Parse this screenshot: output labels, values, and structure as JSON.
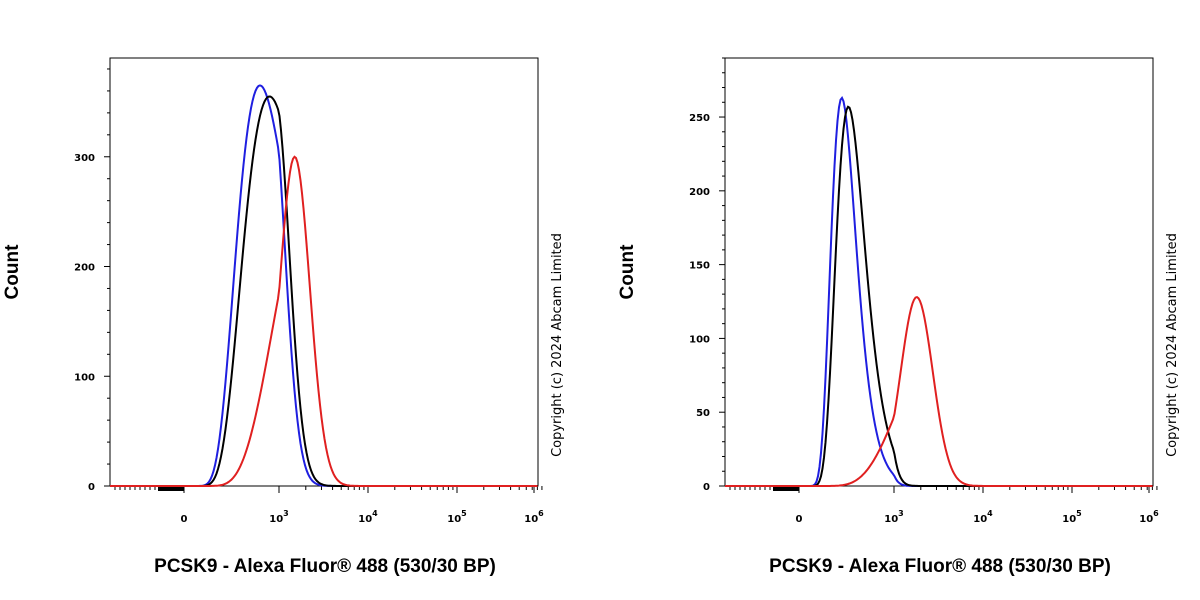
{
  "copyright": "Copyright (c) 2024 Abcam Limited",
  "chart_data": [
    {
      "type": "line",
      "ylabel": "Count",
      "xlabel": "PCSK9 - Alexa Fluor® 488 (530/30 BP)",
      "ylim": [
        0,
        390
      ],
      "yticks": [
        0,
        100,
        200,
        300
      ],
      "ytick_labels": [
        "0",
        "100",
        "200",
        "300"
      ],
      "x_scale": "biexponential",
      "x_major_ticks": [
        "0",
        "10^3",
        "10^4",
        "10^5",
        "10^6"
      ],
      "series": [
        {
          "color": "#1f1fe0",
          "peak_x": 800,
          "peak_y": 365,
          "width": 0.16
        },
        {
          "color": "#000000",
          "peak_x": 900,
          "peak_y": 355,
          "width": 0.16
        },
        {
          "color": "#e02020",
          "peak_x": 1500,
          "peak_y": 300,
          "width": 0.17
        }
      ]
    },
    {
      "type": "line",
      "ylabel": "Count",
      "xlabel": "PCSK9 - Alexa Fluor® 488 (530/30 BP)",
      "ylim": [
        0,
        290
      ],
      "yticks": [
        0,
        50,
        100,
        150,
        200,
        250
      ],
      "ytick_labels": [
        "0",
        "50",
        "100",
        "150",
        "200",
        "250"
      ],
      "x_scale": "biexponential",
      "x_major_ticks": [
        "0",
        "10^3",
        "10^4",
        "10^5",
        "10^6"
      ],
      "series": [
        {
          "color": "#1f1fe0",
          "peak_x": 450,
          "peak_y": 263,
          "width": 0.13
        },
        {
          "color": "#000000",
          "peak_x": 520,
          "peak_y": 257,
          "width": 0.13
        },
        {
          "color": "#e02020",
          "peak_x": 1800,
          "peak_y": 128,
          "width": 0.18
        }
      ]
    }
  ]
}
